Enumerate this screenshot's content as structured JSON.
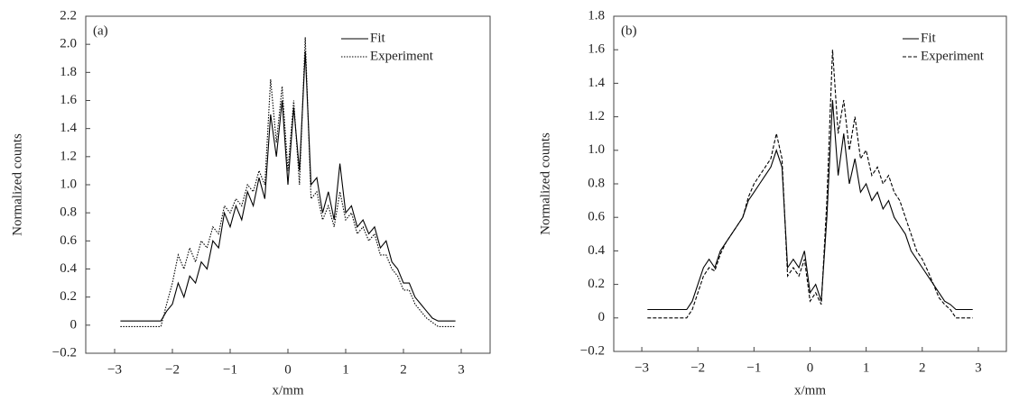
{
  "chart_data": [
    {
      "type": "line",
      "annotation": "(a)",
      "y_label": "Normalized counts",
      "x_label": "x/mm",
      "xlim": [
        -3.5,
        3.5
      ],
      "ylim": [
        -0.2,
        2.2
      ],
      "xticks": [
        {
          "value": -3,
          "label": "−3"
        },
        {
          "value": -2,
          "label": "−2"
        },
        {
          "value": -1,
          "label": "−1"
        },
        0,
        1,
        2,
        3
      ],
      "yticks": [
        {
          "value": -0.2,
          "label": "−0.2"
        },
        0,
        0.2,
        0.4,
        0.6,
        0.8,
        {
          "value": 1,
          "label": "1.0"
        },
        1.2,
        1.4,
        1.6,
        1.8,
        {
          "value": 2,
          "label": "2.0"
        },
        2.2
      ],
      "legend": "top right",
      "x": [
        -2.9,
        -2.8,
        -2.7,
        -2.6,
        -2.5,
        -2.4,
        -2.3,
        -2.2,
        -2.1,
        -2.0,
        -1.9,
        -1.8,
        -1.7,
        -1.6,
        -1.5,
        -1.4,
        -1.3,
        -1.2,
        -1.1,
        -1.0,
        -0.9,
        -0.8,
        -0.7,
        -0.6,
        -0.5,
        -0.4,
        -0.3,
        -0.2,
        -0.1,
        0,
        0.1,
        0.2,
        0.3,
        0.4,
        0.5,
        0.6,
        0.7,
        0.8,
        0.9,
        1.0,
        1.1,
        1.2,
        1.3,
        1.4,
        1.5,
        1.6,
        1.7,
        1.8,
        1.9,
        2.0,
        2.1,
        2.2,
        2.3,
        2.4,
        2.5,
        2.6,
        2.7,
        2.8,
        2.9
      ],
      "series": [
        {
          "name": "Fit",
          "color": "#000000",
          "dash": "solid",
          "values": [
            0.03,
            0.03,
            0.03,
            0.03,
            0.03,
            0.03,
            0.03,
            0.03,
            0.1,
            0.15,
            0.3,
            0.2,
            0.35,
            0.3,
            0.45,
            0.4,
            0.6,
            0.55,
            0.8,
            0.7,
            0.85,
            0.75,
            0.95,
            0.85,
            1.05,
            0.9,
            1.5,
            1.2,
            1.6,
            1.0,
            1.55,
            1.1,
            1.95,
            1.0,
            1.05,
            0.8,
            0.95,
            0.75,
            1.15,
            0.8,
            0.85,
            0.7,
            0.75,
            0.65,
            0.7,
            0.55,
            0.6,
            0.45,
            0.4,
            0.3,
            0.3,
            0.2,
            0.15,
            0.1,
            0.05,
            0.03,
            0.03,
            0.03,
            0.03
          ]
        },
        {
          "name": "Experiment",
          "color": "#000000",
          "dash": "dotted",
          "values": [
            -0.01,
            -0.01,
            -0.01,
            -0.01,
            -0.01,
            -0.01,
            -0.01,
            -0.01,
            0.15,
            0.3,
            0.5,
            0.4,
            0.55,
            0.45,
            0.6,
            0.55,
            0.7,
            0.65,
            0.85,
            0.8,
            0.9,
            0.85,
            1.0,
            0.95,
            1.1,
            1.0,
            1.75,
            1.3,
            1.7,
            1.1,
            1.6,
            1.0,
            2.05,
            0.9,
            0.95,
            0.75,
            0.85,
            0.7,
            0.95,
            0.75,
            0.8,
            0.65,
            0.7,
            0.6,
            0.65,
            0.5,
            0.5,
            0.4,
            0.35,
            0.25,
            0.25,
            0.15,
            0.1,
            0.05,
            0.02,
            -0.01,
            -0.01,
            -0.01,
            -0.01
          ]
        }
      ]
    },
    {
      "type": "line",
      "annotation": "(b)",
      "y_label": "Normalized counts",
      "x_label": "x/mm",
      "xlim": [
        -3.5,
        3.5
      ],
      "ylim": [
        -0.2,
        1.8
      ],
      "xticks": [
        {
          "value": -3,
          "label": "−3"
        },
        {
          "value": -2,
          "label": "−2"
        },
        {
          "value": -1,
          "label": "−1"
        },
        0,
        1,
        2,
        3
      ],
      "yticks": [
        {
          "value": -0.2,
          "label": "−0.2"
        },
        0,
        0.2,
        0.4,
        0.6,
        0.8,
        {
          "value": 1,
          "label": "1.0"
        },
        1.2,
        1.4,
        1.6,
        1.8
      ],
      "legend": "top right",
      "x": [
        -2.9,
        -2.8,
        -2.7,
        -2.6,
        -2.5,
        -2.4,
        -2.3,
        -2.2,
        -2.1,
        -2.0,
        -1.9,
        -1.8,
        -1.7,
        -1.6,
        -1.5,
        -1.4,
        -1.3,
        -1.2,
        -1.1,
        -1.0,
        -0.9,
        -0.8,
        -0.7,
        -0.6,
        -0.5,
        -0.4,
        -0.3,
        -0.2,
        -0.1,
        0,
        0.1,
        0.2,
        0.3,
        0.4,
        0.5,
        0.6,
        0.7,
        0.8,
        0.9,
        1.0,
        1.1,
        1.2,
        1.3,
        1.4,
        1.5,
        1.6,
        1.7,
        1.8,
        1.9,
        2.0,
        2.1,
        2.2,
        2.3,
        2.4,
        2.5,
        2.6,
        2.7,
        2.8,
        2.9
      ],
      "series": [
        {
          "name": "Fit",
          "color": "#000000",
          "dash": "solid",
          "values": [
            0.05,
            0.05,
            0.05,
            0.05,
            0.05,
            0.05,
            0.05,
            0.05,
            0.1,
            0.2,
            0.3,
            0.35,
            0.3,
            0.4,
            0.45,
            0.5,
            0.55,
            0.6,
            0.7,
            0.75,
            0.8,
            0.85,
            0.9,
            1.0,
            0.9,
            0.3,
            0.35,
            0.3,
            0.4,
            0.15,
            0.2,
            0.1,
            0.6,
            1.3,
            0.85,
            1.1,
            0.8,
            0.95,
            0.75,
            0.8,
            0.7,
            0.75,
            0.65,
            0.7,
            0.6,
            0.55,
            0.5,
            0.4,
            0.35,
            0.3,
            0.25,
            0.2,
            0.15,
            0.1,
            0.08,
            0.05,
            0.05,
            0.05,
            0.05
          ]
        },
        {
          "name": "Experiment",
          "color": "#000000",
          "dash": "dashed",
          "values": [
            0,
            0,
            0,
            0,
            0,
            0,
            0,
            0,
            0.05,
            0.15,
            0.25,
            0.3,
            0.28,
            0.38,
            0.45,
            0.5,
            0.55,
            0.6,
            0.72,
            0.8,
            0.85,
            0.9,
            0.95,
            1.1,
            0.95,
            0.25,
            0.3,
            0.25,
            0.35,
            0.1,
            0.15,
            0.08,
            0.7,
            1.6,
            1.1,
            1.3,
            1.0,
            1.2,
            0.95,
            1.0,
            0.85,
            0.9,
            0.8,
            0.85,
            0.75,
            0.7,
            0.6,
            0.5,
            0.4,
            0.35,
            0.28,
            0.2,
            0.12,
            0.08,
            0.05,
            0,
            0,
            0,
            0
          ]
        }
      ]
    }
  ]
}
